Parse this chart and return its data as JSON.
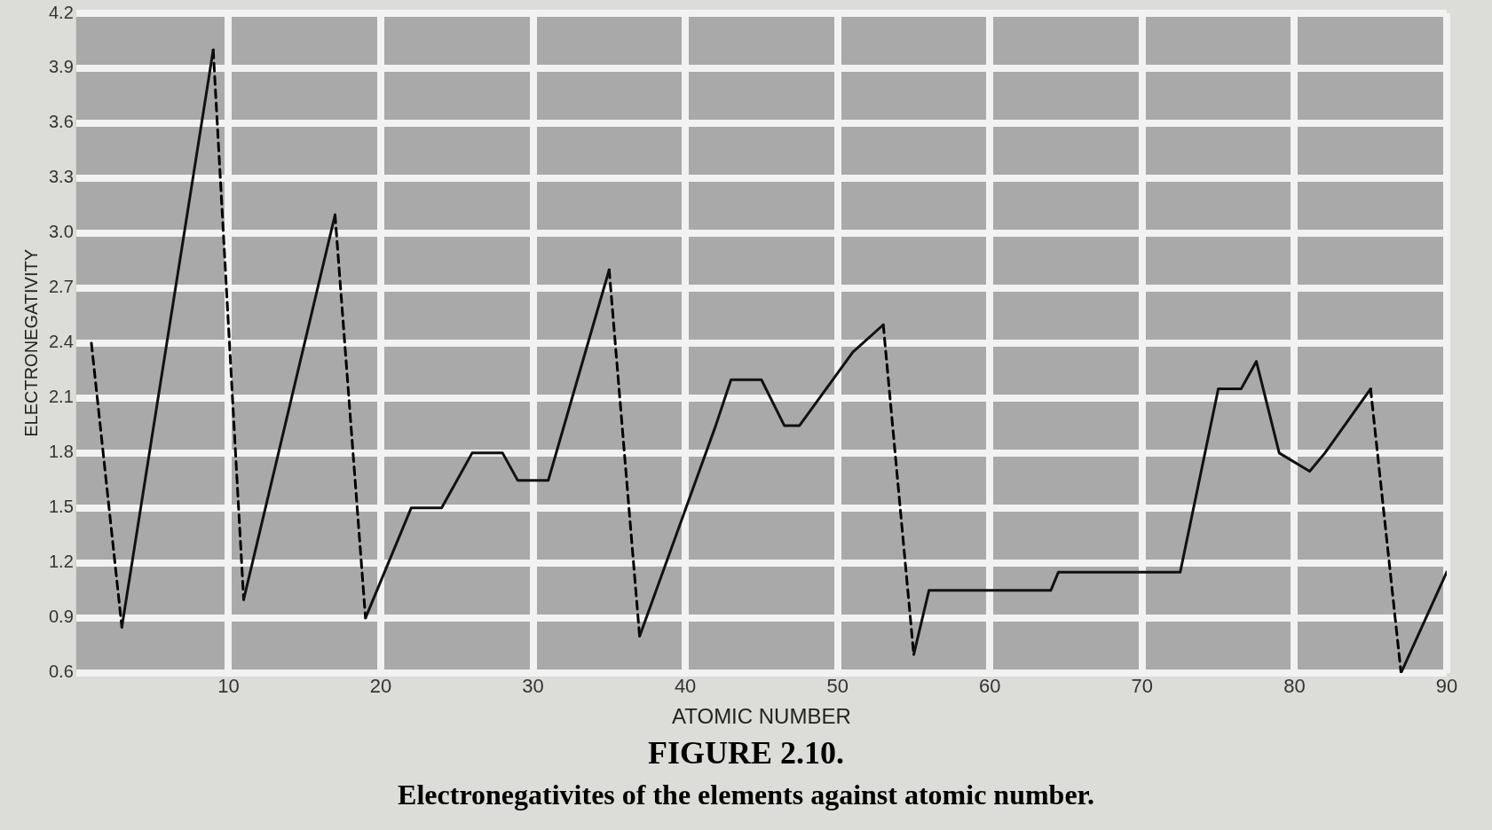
{
  "chart_data": {
    "type": "line",
    "title": "FIGURE 2.10.",
    "subtitle": "Electronegativites of the elements against atomic number.",
    "xlabel": "ATOMIC NUMBER",
    "ylabel": "ELECTRONEGATIVITY",
    "series": [
      {
        "color": "#111111",
        "line_style": "solid",
        "x": [
          3,
          9,
          10,
          11,
          17,
          18,
          19,
          22,
          24,
          26,
          28,
          29,
          31,
          35,
          36,
          37,
          42,
          43,
          45,
          46.5,
          47.5,
          51,
          53,
          54,
          55,
          56,
          64,
          64.5,
          72.5,
          75,
          76.5,
          77.5,
          79,
          81,
          82,
          85,
          86,
          87,
          90
        ],
        "values": [
          0.85,
          4.0,
          null,
          1.0,
          3.1,
          null,
          0.9,
          1.5,
          1.5,
          1.8,
          1.8,
          1.65,
          1.65,
          2.8,
          null,
          0.8,
          1.95,
          2.2,
          2.2,
          1.95,
          1.95,
          2.35,
          2.5,
          null,
          0.7,
          1.05,
          1.05,
          1.15,
          1.15,
          2.15,
          2.15,
          2.3,
          1.8,
          1.7,
          1.8,
          2.15,
          null,
          0.6,
          1.15
        ]
      },
      {
        "color": "#000000",
        "line_style": "dashed",
        "x": [
          1,
          3
        ],
        "values": [
          2.4,
          0.85
        ]
      },
      {
        "color": "#000000",
        "line_style": "dashed",
        "x": [
          9,
          11
        ],
        "values": [
          4.0,
          1.0
        ]
      },
      {
        "color": "#000000",
        "line_style": "dashed",
        "x": [
          17,
          19
        ],
        "values": [
          3.1,
          0.9
        ]
      },
      {
        "color": "#000000",
        "line_style": "dashed",
        "x": [
          35,
          37
        ],
        "values": [
          2.8,
          0.8
        ]
      },
      {
        "color": "#000000",
        "line_style": "dashed",
        "x": [
          53,
          55
        ],
        "values": [
          2.5,
          0.7
        ]
      },
      {
        "color": "#000000",
        "line_style": "dashed",
        "x": [
          85,
          87
        ],
        "values": [
          2.15,
          0.6
        ]
      }
    ],
    "xlim": [
      0,
      90
    ],
    "xticks": [
      10,
      20,
      30,
      40,
      50,
      60,
      70,
      80,
      90
    ],
    "ylim": [
      0.6,
      4.2
    ],
    "yticks": [
      0.6,
      0.9,
      1.2,
      1.5,
      1.8,
      2.1,
      2.4,
      2.7,
      {
        "value": 3.0,
        "label": "3.0"
      },
      3.3,
      3.6,
      3.9,
      4.2
    ],
    "grid": true,
    "legend": false,
    "marker": "none"
  }
}
